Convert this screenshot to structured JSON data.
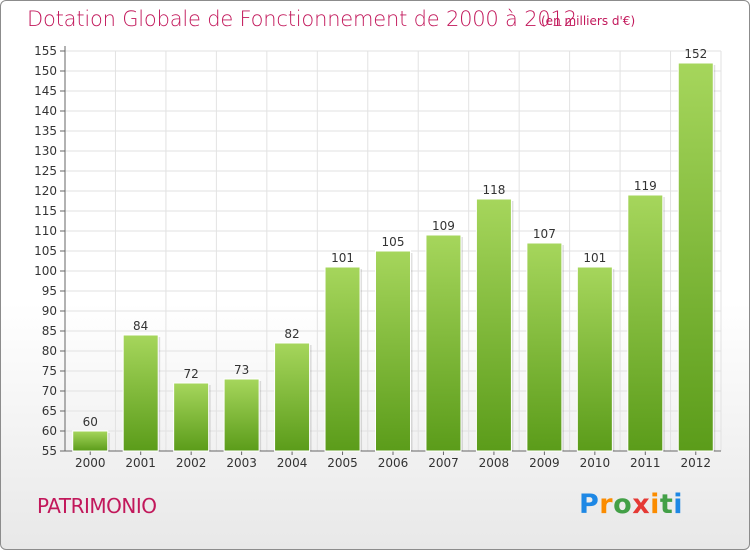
{
  "header": {
    "title": "Dotation Globale de Fonctionnement de 2000 à 2012",
    "unit": "(en milliers d'€)"
  },
  "footer": {
    "commune": "PATRIMONIO",
    "logo_text": "Proxiti"
  },
  "colors": {
    "title": "#c2185b",
    "bar_top": "#a6d65c",
    "bar_bottom": "#5b9c1a",
    "grid": "#e2e2e2"
  },
  "chart_data": {
    "type": "bar",
    "title": "Dotation Globale de Fonctionnement de 2000 à 2012",
    "subtitle": "(en milliers d'€)",
    "xlabel": "",
    "ylabel": "",
    "categories": [
      "2000",
      "2001",
      "2002",
      "2003",
      "2004",
      "2005",
      "2006",
      "2007",
      "2008",
      "2009",
      "2010",
      "2011",
      "2012"
    ],
    "values": [
      60,
      84,
      72,
      73,
      82,
      101,
      105,
      109,
      118,
      107,
      101,
      119,
      152
    ],
    "ylim": [
      55,
      155
    ],
    "yticks": [
      55,
      60,
      65,
      70,
      75,
      80,
      85,
      90,
      95,
      100,
      105,
      110,
      115,
      120,
      125,
      130,
      135,
      140,
      145,
      150,
      155
    ],
    "grid": true,
    "data_labels": true
  }
}
